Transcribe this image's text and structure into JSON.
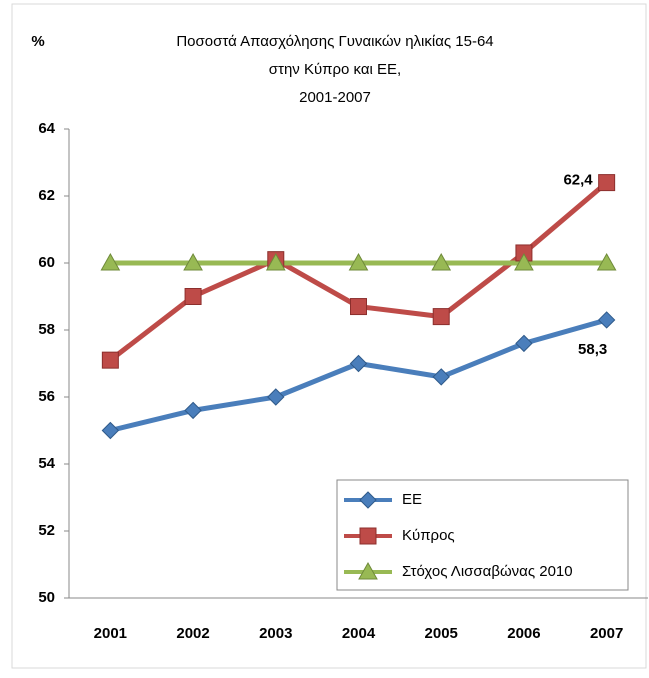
{
  "chart_data": {
    "type": "line",
    "title": [
      "Ποσοστά Απασχόλησης Γυναικών ηλικίας 15-64",
      "στην Κύπρο και ΕΕ,",
      "2001-2007"
    ],
    "y_label": "%",
    "categories": [
      "2001",
      "2002",
      "2003",
      "2004",
      "2005",
      "2006",
      "2007"
    ],
    "series": [
      {
        "name": "ΕΕ",
        "color": "#4a7ebb",
        "marker": "diamond",
        "values": [
          55,
          55.6,
          56,
          57,
          56.6,
          57.6,
          58.3
        ],
        "value_labels": [
          null,
          null,
          null,
          null,
          null,
          null,
          "58,3"
        ]
      },
      {
        "name": "Κύπρος",
        "color": "#be4b48",
        "marker": "square",
        "values": [
          57.1,
          59,
          60.1,
          58.7,
          58.4,
          60.3,
          62.4
        ],
        "value_labels": [
          null,
          null,
          null,
          null,
          null,
          null,
          "62,4"
        ]
      },
      {
        "name": "Στόχος Λισσαβώνας 2010",
        "color": "#98b954",
        "marker": "triangle",
        "values": [
          60,
          60,
          60,
          60,
          60,
          60,
          60
        ]
      }
    ],
    "ylim": [
      50,
      64
    ],
    "yticks": [
      50,
      52,
      54,
      56,
      58,
      60,
      62,
      64
    ],
    "grid": false,
    "legend": "lower right"
  }
}
